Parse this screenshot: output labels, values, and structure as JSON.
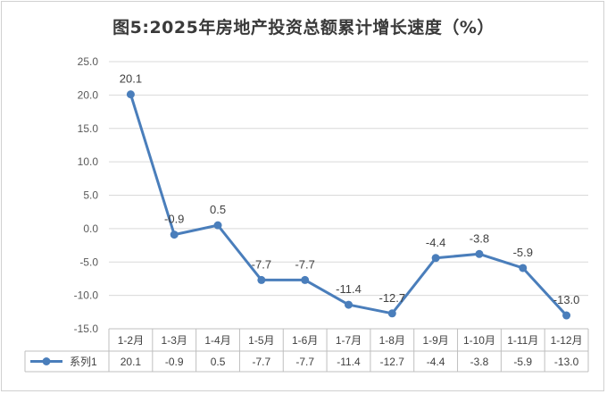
{
  "chart_data": {
    "type": "line",
    "title": "图5:2025年房地产投资总额累计增长速度（%）",
    "categories": [
      "1-2月",
      "1-3月",
      "1-4月",
      "1-5月",
      "1-6月",
      "1-7月",
      "1-8月",
      "1-9月",
      "1-10月",
      "1-11月",
      "1-12月"
    ],
    "series": [
      {
        "name": "系列1",
        "values": [
          20.1,
          -0.9,
          0.5,
          -7.7,
          -7.7,
          -11.4,
          -12.7,
          -4.4,
          -3.8,
          -5.9,
          -13.0
        ],
        "color": "#4a7ebb"
      }
    ],
    "ylim": [
      -15,
      25
    ],
    "yticks": [
      "25.0",
      "20.0",
      "15.0",
      "10.0",
      "5.0",
      "0.0",
      "-5.0",
      "-10.0",
      "-15.0"
    ],
    "data_labels": [
      "20.1",
      "-0.9",
      "0.5",
      "-7.7",
      "-7.7",
      "-11.4",
      "-12.7",
      "-4.4",
      "-3.8",
      "-5.9",
      "-13.0"
    ],
    "table_values": [
      "20.1",
      "-0.9",
      "0.5",
      "-7.7",
      "-7.7",
      "-11.4",
      "-12.7",
      "-4.4",
      "-3.8",
      "-5.9",
      "-13.0"
    ],
    "grid": true,
    "legend": "data-table"
  }
}
